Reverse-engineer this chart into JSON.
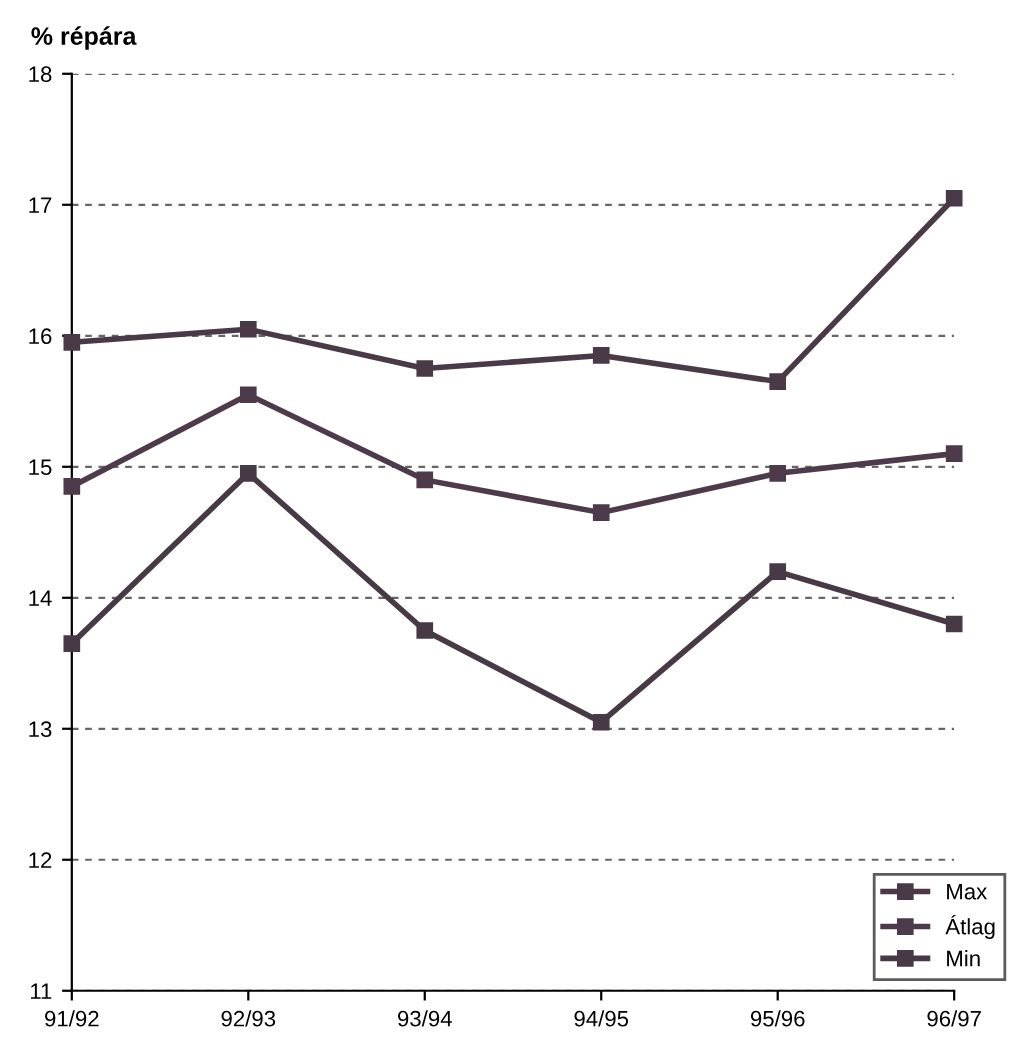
{
  "chart_data": {
    "type": "line",
    "ylabel": "% répára",
    "categories": [
      "91/92",
      "92/93",
      "93/94",
      "94/95",
      "95/96",
      "96/97"
    ],
    "series": [
      {
        "name": "Max",
        "color": "#4a3a48",
        "values": [
          15.95,
          16.05,
          15.75,
          15.85,
          15.65,
          17.05
        ]
      },
      {
        "name": "Átlag",
        "color": "#4d3a4a",
        "values": [
          14.85,
          15.55,
          14.9,
          14.65,
          14.95,
          15.1
        ]
      },
      {
        "name": "Min",
        "color": "#473a46",
        "values": [
          13.65,
          14.95,
          13.75,
          13.05,
          14.2,
          13.8
        ]
      }
    ],
    "ylim": [
      11,
      18
    ],
    "yticks": [
      11,
      12,
      13,
      14,
      15,
      16,
      17,
      18
    ],
    "grid": "y",
    "legend": "bottom right",
    "marker": "square",
    "line_style": "solid"
  }
}
